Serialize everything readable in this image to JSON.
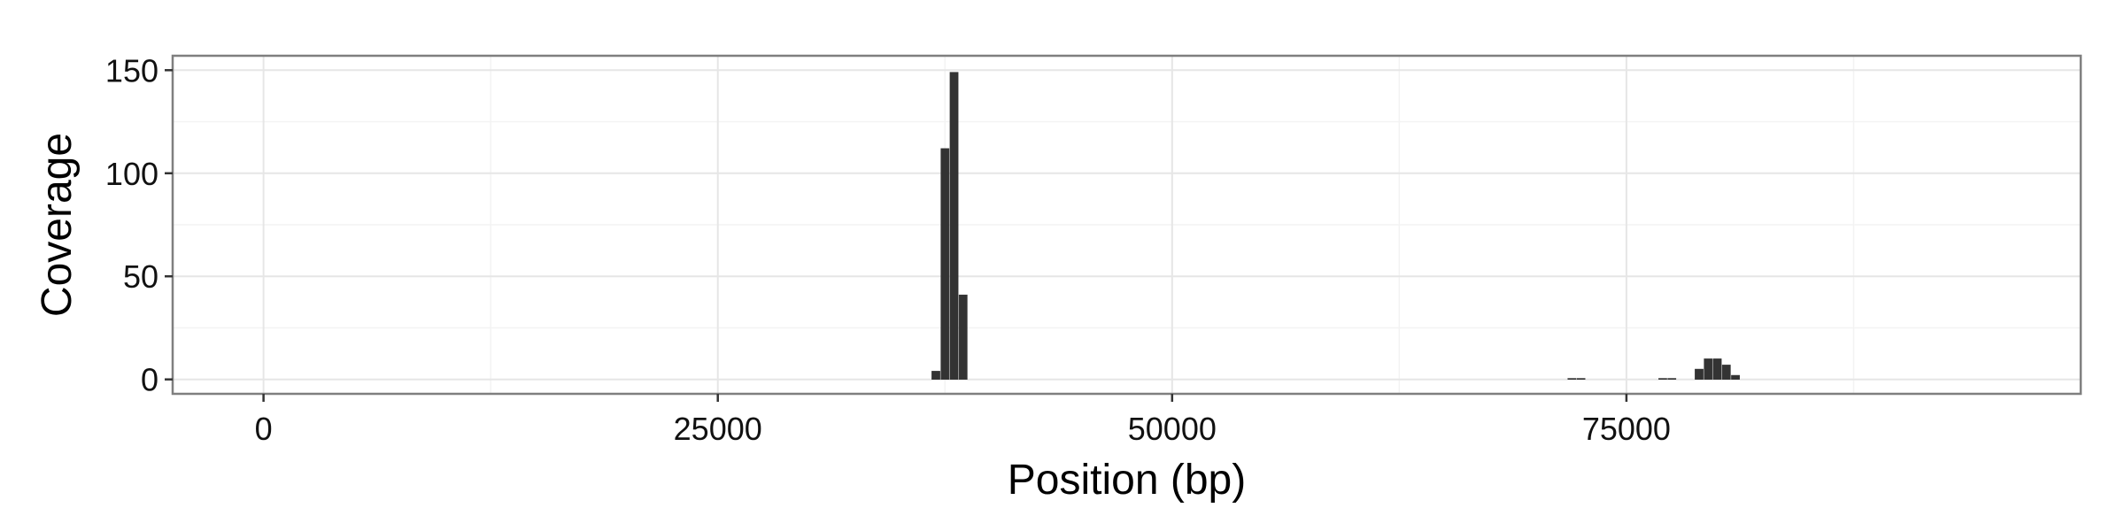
{
  "chart_data": {
    "type": "bar",
    "title": "",
    "xlabel": "Position (bp)",
    "ylabel": "Coverage",
    "xlim": [
      -5000,
      100000
    ],
    "ylim": [
      -7,
      157
    ],
    "x_ticks": [
      0,
      25000,
      50000,
      75000
    ],
    "x_tick_labels": [
      "0",
      "25000",
      "50000",
      "75000"
    ],
    "y_ticks": [
      0,
      50,
      100,
      150
    ],
    "y_tick_labels": [
      "0",
      "50",
      "100",
      "150"
    ],
    "grid": true,
    "legend": "none",
    "bar_color": "#333333",
    "bar_width_bp": 500,
    "x": [
      37000,
      37500,
      38000,
      38500,
      72000,
      72500,
      77000,
      77500,
      79000,
      79500,
      80000,
      80500,
      81000
    ],
    "values": [
      4,
      112,
      149,
      41,
      0.5,
      0.5,
      0.5,
      0.5,
      5,
      10,
      10,
      7,
      2
    ]
  },
  "colors": {
    "panel_background": "#ffffff",
    "grid_major": "#e6e6e6",
    "grid_minor": "#f3f3f3",
    "panel_border": "#7f7f7f",
    "bar_fill": "#333333"
  }
}
